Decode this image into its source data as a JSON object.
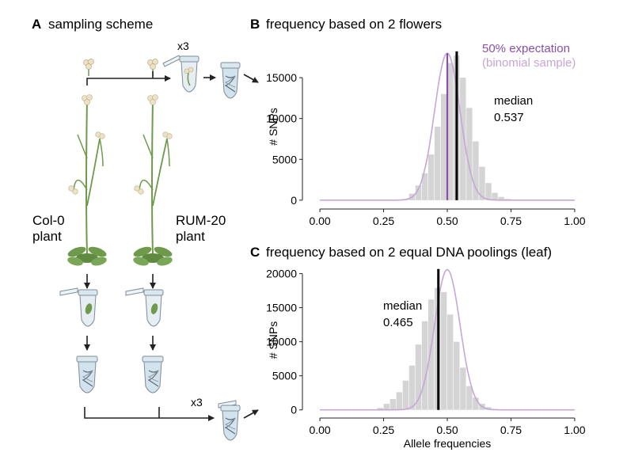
{
  "panel_a": {
    "letter": "A",
    "title": "sampling scheme",
    "plant_left_line1": "Col-0",
    "plant_left_line2": "plant",
    "plant_right_line1": "RUM-20",
    "plant_right_line2": "plant",
    "replicate_top": "x3",
    "replicate_bottom": "x3"
  },
  "panel_b": {
    "letter": "B",
    "title": "frequency based on 2 flowers",
    "legend_line1": "50% expectation",
    "legend_line2": "(binomial sample)",
    "median_label": "median",
    "median_value": "0.537"
  },
  "panel_c": {
    "letter": "C",
    "title": "frequency based on 2 equal DNA poolings (leaf)",
    "median_label": "median",
    "median_value": "0.465"
  },
  "colors": {
    "histogram_fill": "#d4d4d4",
    "expectation_line": "#c6a6d6",
    "expectation_text": "#8a4fa8",
    "median_line": "#000000",
    "leaf_green": "#6f9a4c",
    "tube_blue": "#d3e3ee"
  },
  "chart_data": [
    {
      "type": "bar",
      "panel": "B",
      "title": "frequency based on 2 flowers",
      "xlabel": "",
      "ylabel": "# SNPs",
      "xlim": [
        -0.05,
        1.05
      ],
      "ylim": [
        -500,
        18500
      ],
      "xticks": [
        "0.00",
        "0.25",
        "0.50",
        "0.75",
        "1.00"
      ],
      "yticks": [
        "0",
        "5000",
        "10000",
        "15000"
      ],
      "bin_width": 0.025,
      "bins_start": [
        0.325,
        0.35,
        0.375,
        0.4,
        0.425,
        0.45,
        0.475,
        0.5,
        0.525,
        0.55,
        0.575,
        0.6,
        0.625,
        0.65,
        0.675,
        0.7,
        0.725
      ],
      "counts": [
        150,
        800,
        1800,
        3300,
        5600,
        9000,
        13000,
        16800,
        17700,
        15000,
        11300,
        7200,
        4100,
        2100,
        900,
        400,
        150
      ],
      "expectation_peak": 18000,
      "expectation_center": 0.5,
      "expectation_sd": 0.05,
      "median": 0.537
    },
    {
      "type": "bar",
      "panel": "C",
      "title": "frequency based on 2 equal DNA poolings (leaf)",
      "xlabel": "Allele frequencies",
      "ylabel": "# SNPs",
      "xlim": [
        -0.05,
        1.05
      ],
      "ylim": [
        -500,
        21000
      ],
      "xticks": [
        "0.00",
        "0.25",
        "0.50",
        "0.75",
        "1.00"
      ],
      "yticks": [
        "0",
        "5000",
        "10000",
        "15000",
        "20000"
      ],
      "bin_width": 0.025,
      "bins_start": [
        0.225,
        0.25,
        0.275,
        0.3,
        0.325,
        0.35,
        0.375,
        0.4,
        0.425,
        0.45,
        0.475,
        0.5,
        0.525,
        0.55,
        0.575,
        0.6,
        0.625,
        0.65,
        0.675
      ],
      "counts": [
        300,
        900,
        1600,
        2600,
        4300,
        6500,
        9600,
        13000,
        16200,
        17900,
        17300,
        14000,
        10000,
        6200,
        3500,
        1800,
        900,
        400,
        150
      ],
      "expectation_peak": 20600,
      "expectation_center": 0.5,
      "expectation_sd": 0.05,
      "median": 0.465
    }
  ]
}
